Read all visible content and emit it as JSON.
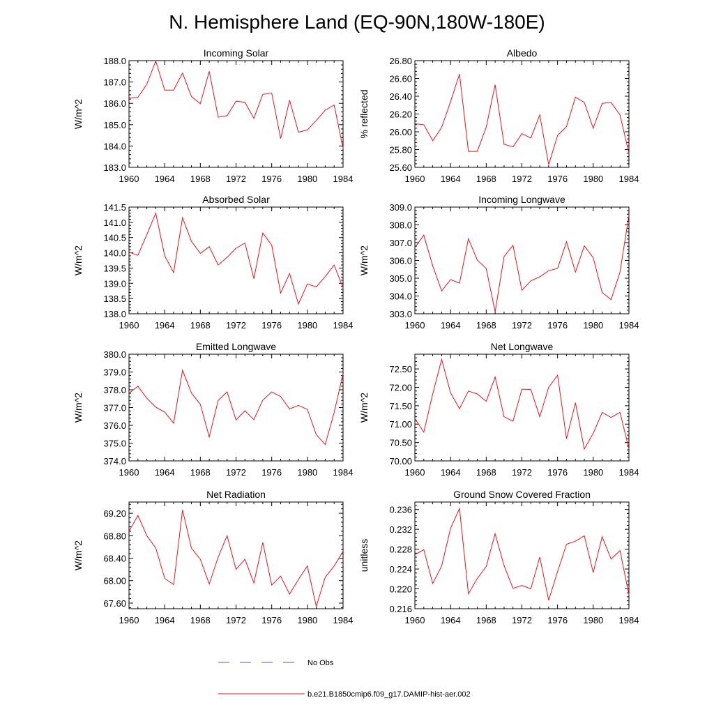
{
  "figure": {
    "title": "N. Hemisphere Land (EQ-90N,180W-180E)"
  },
  "legend": {
    "items": [
      {
        "label": "No Obs",
        "color": "#5a5aa8",
        "dash": true
      },
      {
        "label": "b.e21.B1850cmip6.f09_g17.DAMIP-hist-aer.002",
        "color": "#e8141b",
        "dash": false
      }
    ]
  },
  "series_color": "#e8141b",
  "chart_data": [
    {
      "type": "line",
      "title": "Incoming Solar",
      "ylabel": "W/m^2",
      "xlabel": "",
      "xlim": [
        1960,
        1984
      ],
      "ylim": [
        183.0,
        188.0
      ],
      "x_ticks": [
        "1960",
        "1964",
        "1968",
        "1972",
        "1976",
        "1980",
        "1984"
      ],
      "y_ticks": [
        "183.0",
        "184.0",
        "185.0",
        "186.0",
        "187.0",
        "188.0"
      ],
      "x": [
        1960,
        1961,
        1962,
        1963,
        1964,
        1965,
        1966,
        1967,
        1968,
        1969,
        1970,
        1971,
        1972,
        1973,
        1974,
        1975,
        1976,
        1977,
        1978,
        1979,
        1980,
        1981,
        1982,
        1983,
        1984
      ],
      "values": [
        186.25,
        186.28,
        186.9,
        187.98,
        186.62,
        186.62,
        187.42,
        186.32,
        185.98,
        187.5,
        185.35,
        185.42,
        186.1,
        186.05,
        185.3,
        186.42,
        186.48,
        184.35,
        186.15,
        184.65,
        184.75,
        185.2,
        185.68,
        185.92,
        183.9
      ]
    },
    {
      "type": "line",
      "title": "Albedo",
      "ylabel": "% reflected",
      "xlabel": "",
      "xlim": [
        1960,
        1984
      ],
      "ylim": [
        25.6,
        26.8
      ],
      "x_ticks": [
        "1960",
        "1964",
        "1968",
        "1972",
        "1976",
        "1980",
        "1984"
      ],
      "y_ticks": [
        "25.60",
        "25.80",
        "26.00",
        "26.20",
        "26.40",
        "26.60",
        "26.80"
      ],
      "x": [
        1960,
        1961,
        1962,
        1963,
        1964,
        1965,
        1966,
        1967,
        1968,
        1969,
        1970,
        1971,
        1972,
        1973,
        1974,
        1975,
        1976,
        1977,
        1978,
        1979,
        1980,
        1981,
        1982,
        1983,
        1984
      ],
      "values": [
        26.09,
        26.08,
        25.9,
        26.05,
        26.34,
        26.65,
        25.78,
        25.78,
        26.05,
        26.53,
        25.86,
        25.83,
        25.98,
        25.93,
        26.19,
        25.63,
        25.96,
        26.06,
        26.39,
        26.33,
        26.04,
        26.32,
        26.33,
        26.19,
        25.76
      ]
    },
    {
      "type": "line",
      "title": "Absorbed Solar",
      "ylabel": "W/m^2",
      "xlabel": "",
      "xlim": [
        1960,
        1984
      ],
      "ylim": [
        138.0,
        141.5
      ],
      "x_ticks": [
        "1960",
        "1964",
        "1968",
        "1972",
        "1976",
        "1980",
        "1984"
      ],
      "y_ticks": [
        "138.0",
        "138.5",
        "139.0",
        "139.5",
        "140.0",
        "140.5",
        "141.0",
        "141.5"
      ],
      "x": [
        1960,
        1961,
        1962,
        1963,
        1964,
        1965,
        1966,
        1967,
        1968,
        1969,
        1970,
        1971,
        1972,
        1973,
        1974,
        1975,
        1976,
        1977,
        1978,
        1979,
        1980,
        1981,
        1982,
        1983,
        1984
      ],
      "values": [
        140.02,
        139.92,
        140.6,
        141.3,
        139.9,
        139.35,
        141.15,
        140.38,
        139.98,
        140.2,
        139.6,
        139.85,
        140.15,
        140.32,
        139.15,
        140.65,
        140.25,
        138.68,
        139.32,
        138.32,
        138.98,
        138.88,
        139.22,
        139.6,
        138.85
      ]
    },
    {
      "type": "line",
      "title": "Incoming Longwave",
      "ylabel": "W/m^2",
      "xlabel": "",
      "xlim": [
        1960,
        1984
      ],
      "ylim": [
        303.0,
        309.0
      ],
      "x_ticks": [
        "1960",
        "1964",
        "1968",
        "1972",
        "1976",
        "1980",
        "1984"
      ],
      "y_ticks": [
        "303.0",
        "304.0",
        "305.0",
        "306.0",
        "307.0",
        "308.0",
        "309.0"
      ],
      "x": [
        1960,
        1961,
        1962,
        1963,
        1964,
        1965,
        1966,
        1967,
        1968,
        1969,
        1970,
        1971,
        1972,
        1973,
        1974,
        1975,
        1976,
        1977,
        1978,
        1979,
        1980,
        1981,
        1982,
        1983,
        1984
      ],
      "values": [
        306.72,
        307.42,
        305.7,
        304.28,
        304.92,
        304.72,
        307.22,
        306.02,
        305.55,
        303.1,
        306.22,
        306.85,
        304.32,
        304.85,
        305.08,
        305.42,
        305.55,
        307.05,
        305.35,
        306.82,
        306.15,
        304.2,
        303.8,
        305.35,
        308.55
      ]
    },
    {
      "type": "line",
      "title": "Emitted Longwave",
      "ylabel": "W/m^2",
      "xlabel": "",
      "xlim": [
        1960,
        1984
      ],
      "ylim": [
        374.0,
        380.0
      ],
      "x_ticks": [
        "1960",
        "1964",
        "1968",
        "1972",
        "1976",
        "1980",
        "1984"
      ],
      "y_ticks": [
        "374.0",
        "375.0",
        "376.0",
        "377.0",
        "378.0",
        "379.0",
        "380.0"
      ],
      "x": [
        1960,
        1961,
        1962,
        1963,
        1964,
        1965,
        1966,
        1967,
        1968,
        1969,
        1970,
        1971,
        1972,
        1973,
        1974,
        1975,
        1976,
        1977,
        1978,
        1979,
        1980,
        1981,
        1982,
        1983,
        1984
      ],
      "values": [
        377.8,
        378.2,
        377.52,
        377.02,
        376.75,
        376.12,
        379.1,
        377.82,
        377.18,
        375.35,
        377.4,
        377.88,
        376.3,
        376.82,
        376.32,
        377.42,
        377.88,
        377.62,
        376.92,
        377.12,
        376.9,
        375.48,
        374.92,
        376.72,
        378.9
      ]
    },
    {
      "type": "line",
      "title": "Net Longwave",
      "ylabel": "W/m^2",
      "xlabel": "",
      "xlim": [
        1960,
        1984
      ],
      "ylim": [
        70.0,
        72.9
      ],
      "x_ticks": [
        "1960",
        "1964",
        "1968",
        "1972",
        "1976",
        "1980",
        "1984"
      ],
      "y_ticks": [
        "70.00",
        "70.50",
        "71.00",
        "71.50",
        "72.00",
        "72.50"
      ],
      "x": [
        1960,
        1961,
        1962,
        1963,
        1964,
        1965,
        1966,
        1967,
        1968,
        1969,
        1970,
        1971,
        1972,
        1973,
        1974,
        1975,
        1976,
        1977,
        1978,
        1979,
        1980,
        1981,
        1982,
        1983,
        1984
      ],
      "values": [
        71.15,
        70.78,
        71.82,
        72.76,
        71.85,
        71.42,
        71.9,
        71.82,
        71.62,
        72.28,
        71.2,
        71.08,
        71.95,
        71.94,
        71.2,
        72.0,
        72.33,
        70.6,
        71.58,
        70.32,
        70.75,
        71.32,
        71.18,
        71.32,
        70.33
      ]
    },
    {
      "type": "line",
      "title": "Net Radiation",
      "ylabel": "W/m^2",
      "xlabel": "",
      "xlim": [
        1960,
        1984
      ],
      "ylim": [
        67.5,
        69.4
      ],
      "x_ticks": [
        "1960",
        "1964",
        "1968",
        "1972",
        "1976",
        "1980",
        "1984"
      ],
      "y_ticks": [
        "67.60",
        "68.00",
        "68.40",
        "68.80",
        "69.20"
      ],
      "x": [
        1960,
        1961,
        1962,
        1963,
        1964,
        1965,
        1966,
        1967,
        1968,
        1969,
        1970,
        1971,
        1972,
        1973,
        1974,
        1975,
        1976,
        1977,
        1978,
        1979,
        1980,
        1981,
        1982,
        1983,
        1984
      ],
      "values": [
        68.88,
        69.16,
        68.8,
        68.58,
        68.04,
        67.93,
        69.26,
        68.58,
        68.38,
        67.94,
        68.42,
        68.8,
        68.2,
        68.38,
        67.96,
        68.68,
        67.92,
        68.08,
        67.76,
        68.02,
        68.26,
        67.54,
        68.06,
        68.26,
        68.52
      ]
    },
    {
      "type": "line",
      "title": "Ground Snow Covered Fraction",
      "ylabel": "unitless",
      "xlabel": "",
      "xlim": [
        1960,
        1984
      ],
      "ylim": [
        0.216,
        0.2375
      ],
      "x_ticks": [
        "1960",
        "1964",
        "1968",
        "1972",
        "1976",
        "1980",
        "1984"
      ],
      "y_ticks": [
        "0.216",
        "0.220",
        "0.224",
        "0.228",
        "0.232",
        "0.236"
      ],
      "x": [
        1960,
        1961,
        1962,
        1963,
        1964,
        1965,
        1966,
        1967,
        1968,
        1969,
        1970,
        1971,
        1972,
        1973,
        1974,
        1975,
        1976,
        1977,
        1978,
        1979,
        1980,
        1981,
        1982,
        1983,
        1984
      ],
      "values": [
        0.2269,
        0.2279,
        0.2211,
        0.2246,
        0.2322,
        0.2362,
        0.219,
        0.2221,
        0.2245,
        0.2311,
        0.2247,
        0.2201,
        0.2207,
        0.22,
        0.2264,
        0.2177,
        0.2235,
        0.229,
        0.2296,
        0.2307,
        0.2233,
        0.2305,
        0.226,
        0.2277,
        0.2188
      ]
    }
  ]
}
